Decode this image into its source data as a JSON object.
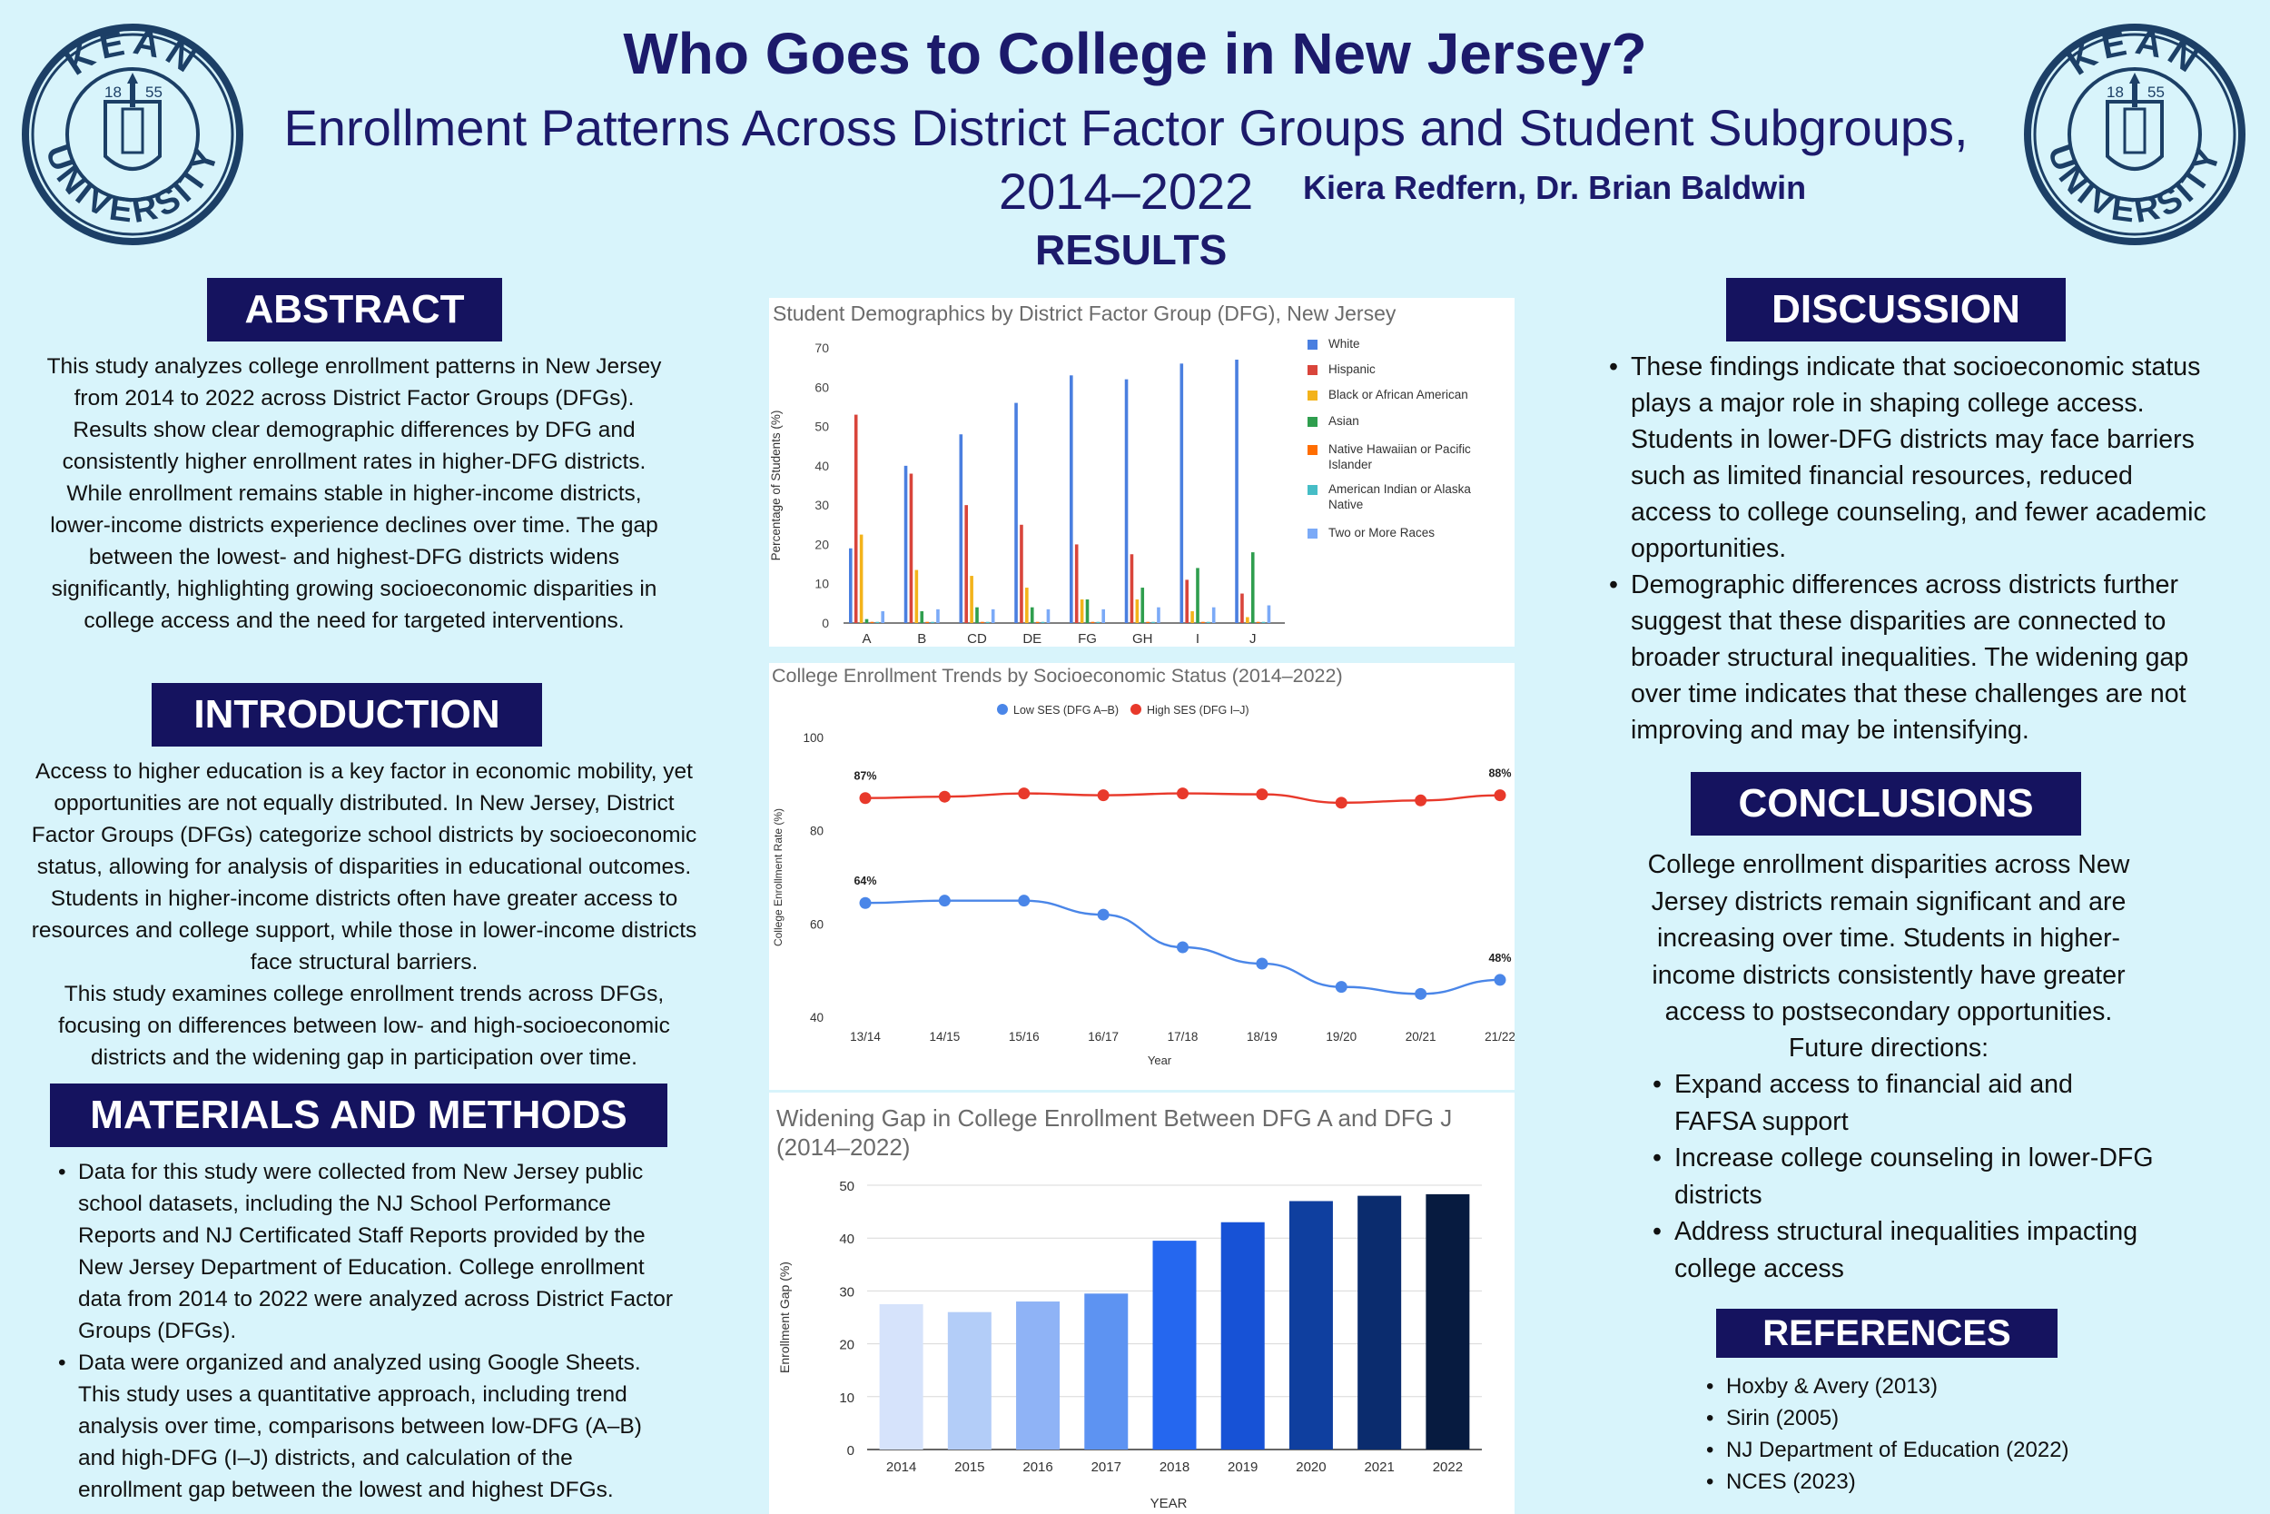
{
  "header": {
    "title": "Who Goes to College in New Jersey?",
    "subtitle_line1": "Enrollment Patterns Across District Factor Groups and Student Subgroups,",
    "subtitle_line2": "2014–2022",
    "authors": "Kiera Redfern, Dr. Brian Baldwin",
    "results_heading": "RESULTS"
  },
  "logo": {
    "text_top": "KEAN",
    "text_bottom": "UNIVERSITY",
    "year_left": "18",
    "year_right": "55",
    "color": "#1c3f66"
  },
  "abstract": {
    "heading": "ABSTRACT",
    "text": "This study analyzes college enrollment patterns in New Jersey from 2014 to 2022 across District Factor Groups (DFGs). Results show clear demographic differences by DFG and consistently higher enrollment rates in higher-DFG districts. While enrollment remains stable in higher-income districts, lower-income districts experience declines over time. The gap between the lowest- and highest-DFG districts widens significantly, highlighting growing socioeconomic disparities in college access and the need for targeted interventions."
  },
  "introduction": {
    "heading": "INTRODUCTION",
    "paragraph1": "Access to higher education is a key factor in economic mobility, yet opportunities are not equally distributed. In New Jersey, District Factor Groups (DFGs) categorize school districts by socioeconomic status, allowing for analysis of disparities in educational outcomes. Students in higher-income districts often have greater access to resources and college support, while those in lower-income districts face structural barriers.",
    "paragraph2": "This study examines college enrollment trends across DFGs, focusing on differences between low- and high-socioeconomic districts and the widening gap in participation over time."
  },
  "methods": {
    "heading": "MATERIALS AND METHODS",
    "bullets": [
      "Data for this study were collected from New Jersey public school datasets, including the NJ School Performance Reports and NJ Certificated Staff Reports provided by the New Jersey Department of Education. College enrollment data from 2014 to 2022 were analyzed across District Factor Groups (DFGs).",
      "Data were organized and analyzed using Google Sheets. This study uses a quantitative approach, including trend analysis over time, comparisons between low-DFG (A–B) and high-DFG (I–J) districts, and calculation of the enrollment gap between the lowest and highest DFGs."
    ]
  },
  "discussion": {
    "heading": "DISCUSSION",
    "bullets": [
      "These findings indicate that socioeconomic status plays a major role in shaping college access. Students in lower-DFG districts may face barriers such as limited financial resources, reduced access to college counseling, and fewer academic opportunities.",
      "Demographic differences across districts further suggest that these disparities are connected to broader structural inequalities. The widening gap over time indicates that these challenges are not improving and may be intensifying."
    ]
  },
  "conclusions": {
    "heading": "CONCLUSIONS",
    "text": "College enrollment disparities across New Jersey districts remain significant and are increasing over time. Students in higher-income districts consistently have greater access to postsecondary opportunities.",
    "future_label": "Future directions:",
    "bullets": [
      "Expand access to financial aid and FAFSA support",
      "Increase college counseling in lower-DFG districts",
      "Address structural inequalities impacting college access"
    ]
  },
  "references": {
    "heading": "REFERENCES",
    "items": [
      "Hoxby & Avery (2013)",
      "Sirin (2005)",
      "NJ Department of Education (2022)",
      "NCES (2023)"
    ]
  },
  "chart_data": [
    {
      "type": "bar",
      "title": "Student Demographics by District Factor Group (DFG), New Jersey",
      "xlabel": "",
      "ylabel": "Percentage of Students (%)",
      "ylim": [
        0,
        70
      ],
      "yticks": [
        0,
        10,
        20,
        30,
        40,
        50,
        60,
        70
      ],
      "categories": [
        "A",
        "B",
        "CD",
        "DE",
        "FG",
        "GH",
        "I",
        "J"
      ],
      "legend_position": "right",
      "series": [
        {
          "name": "White",
          "color": "#4a7fe0",
          "values": [
            19,
            40,
            48,
            56,
            63,
            62,
            66,
            67
          ]
        },
        {
          "name": "Hispanic",
          "color": "#d9453b",
          "values": [
            53,
            38,
            30,
            25,
            20,
            17.5,
            11,
            7.5
          ]
        },
        {
          "name": "Black or African American",
          "color": "#f3b31b",
          "values": [
            22.5,
            13.5,
            12,
            9,
            6,
            6,
            3,
            1.5
          ]
        },
        {
          "name": "Asian",
          "color": "#2f9e4e",
          "values": [
            1,
            3,
            4,
            4,
            6,
            9,
            14,
            18
          ]
        },
        {
          "name": "Native Hawaiian or Pacific Islander",
          "color": "#ff6d01",
          "values": [
            0.3,
            0.3,
            0.3,
            0.3,
            0.3,
            0.3,
            0.3,
            0.3
          ]
        },
        {
          "name": "American Indian or Alaska Native",
          "color": "#46bdc6",
          "values": [
            0.3,
            0.3,
            0.3,
            0.3,
            0.3,
            0.3,
            0.3,
            0.3
          ]
        },
        {
          "name": "Two or More Races",
          "color": "#7baaf7",
          "values": [
            3,
            3.5,
            3.5,
            3.5,
            3.5,
            4,
            4,
            4.5
          ]
        }
      ]
    },
    {
      "type": "line",
      "title": "College Enrollment Trends by Socioeconomic Status (2014–2022)",
      "xlabel": "Year",
      "ylabel": "College Enrollment Rate (%)",
      "ylim": [
        40,
        100
      ],
      "yticks": [
        40,
        60,
        80,
        100
      ],
      "categories": [
        "13/14",
        "14/15",
        "15/16",
        "16/17",
        "17/18",
        "18/19",
        "19/20",
        "20/21",
        "21/22"
      ],
      "legend_position": "top",
      "series": [
        {
          "name": "Low SES (DFG A–B)",
          "color": "#4a86e8",
          "values": [
            64.5,
            65,
            65,
            62,
            55,
            51.5,
            46.5,
            45,
            48
          ],
          "labels": {
            "0": "64%",
            "8": "48%"
          }
        },
        {
          "name": "High SES (DFG I–J)",
          "color": "#e8392b",
          "values": [
            87,
            87.3,
            88,
            87.6,
            88,
            87.8,
            86,
            86.5,
            87.6
          ],
          "labels": {
            "0": "87%",
            "8": "88%"
          }
        }
      ]
    },
    {
      "type": "bar",
      "title": "Widening Gap in College Enrollment Between DFG A and DFG J (2014–2022)",
      "xlabel": "YEAR",
      "ylabel": "Enrollment Gap (%)",
      "ylim": [
        0,
        50
      ],
      "yticks": [
        0,
        10,
        20,
        30,
        40,
        50
      ],
      "categories": [
        "2014",
        "2015",
        "2016",
        "2017",
        "2018",
        "2019",
        "2020",
        "2021",
        "2022"
      ],
      "values": [
        27.5,
        26,
        28,
        29.5,
        39.5,
        43,
        47,
        48,
        48.3
      ],
      "colors": [
        "#d6e3fb",
        "#b3cdf8",
        "#8fb3f6",
        "#5d93f2",
        "#2567ef",
        "#1752d6",
        "#0f3f9f",
        "#0b2c6e",
        "#071b40"
      ]
    }
  ]
}
